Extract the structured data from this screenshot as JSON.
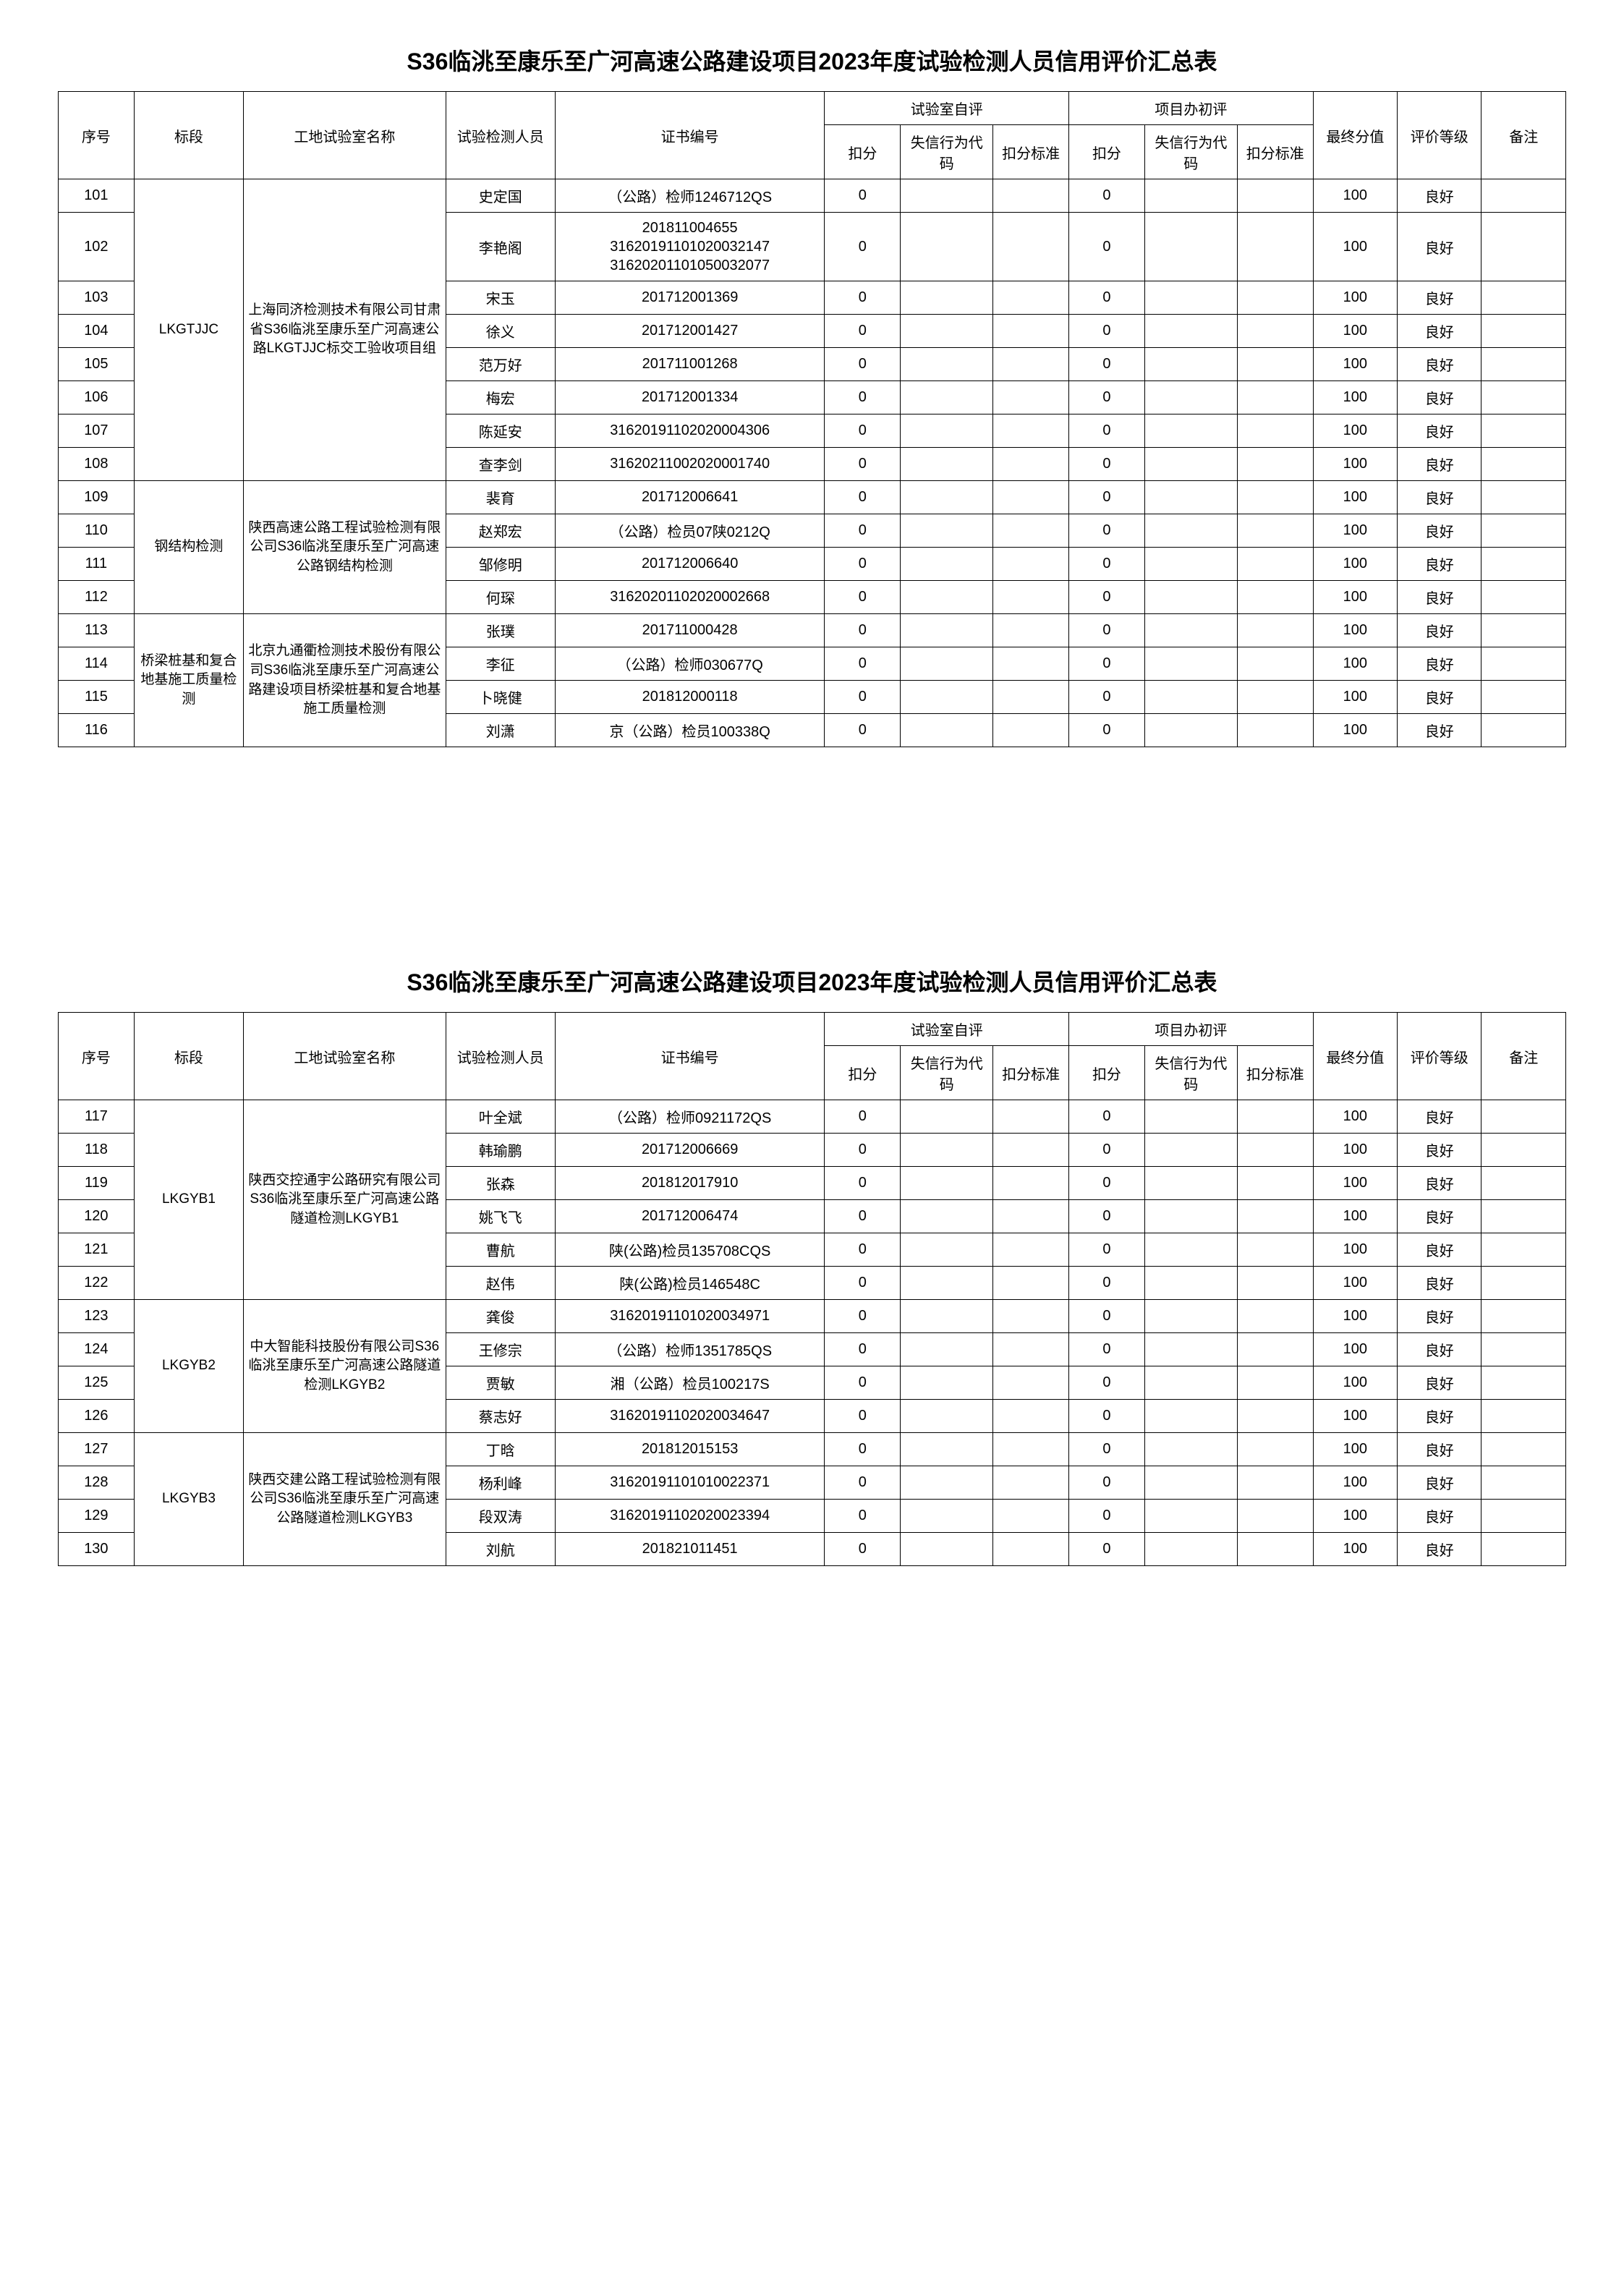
{
  "title": "S36临洮至康乐至广河高速公路建设项目2023年度试验检测人员信用评价汇总表",
  "headers": {
    "seq": "序号",
    "section": "标段",
    "lab": "工地试验室名称",
    "person": "试验检测人员",
    "cert": "证书编号",
    "labEval": "试验室自评",
    "projEval": "项目办初评",
    "deduct": "扣分",
    "code": "失信行为代码",
    "std": "扣分标准",
    "final": "最终分值",
    "grade": "评价等级",
    "remark": "备注"
  },
  "table1": {
    "groups": [
      {
        "section": "LKGTJJC",
        "lab": "上海同济检测技术有限公司甘肃省S36临洮至康乐至广河高速公路LKGTJJC标交工验收项目组",
        "rows": [
          {
            "seq": "101",
            "person": "史定国",
            "cert": "（公路）检师1246712QS",
            "d1": "0",
            "d2": "0",
            "final": "100",
            "grade": "良好"
          },
          {
            "seq": "102",
            "person": "李艳阁",
            "cert": "201811004655\n31620191101020032147\n31620201101050032077",
            "d1": "0",
            "d2": "0",
            "final": "100",
            "grade": "良好"
          },
          {
            "seq": "103",
            "person": "宋玉",
            "cert": "201712001369",
            "d1": "0",
            "d2": "0",
            "final": "100",
            "grade": "良好"
          },
          {
            "seq": "104",
            "person": "徐义",
            "cert": "201712001427",
            "d1": "0",
            "d2": "0",
            "final": "100",
            "grade": "良好"
          },
          {
            "seq": "105",
            "person": "范万好",
            "cert": "201711001268",
            "d1": "0",
            "d2": "0",
            "final": "100",
            "grade": "良好"
          },
          {
            "seq": "106",
            "person": "梅宏",
            "cert": "201712001334",
            "d1": "0",
            "d2": "0",
            "final": "100",
            "grade": "良好"
          },
          {
            "seq": "107",
            "person": "陈延安",
            "cert": "31620191102020004306",
            "d1": "0",
            "d2": "0",
            "final": "100",
            "grade": "良好"
          },
          {
            "seq": "108",
            "person": "查李剑",
            "cert": "31620211002020001740",
            "d1": "0",
            "d2": "0",
            "final": "100",
            "grade": "良好"
          }
        ]
      },
      {
        "section": "钢结构检测",
        "lab": "陕西高速公路工程试验检测有限公司S36临洮至康乐至广河高速公路钢结构检测",
        "rows": [
          {
            "seq": "109",
            "person": "裴育",
            "cert": "201712006641",
            "d1": "0",
            "d2": "0",
            "final": "100",
            "grade": "良好"
          },
          {
            "seq": "110",
            "person": "赵郑宏",
            "cert": "（公路）检员07陕0212Q",
            "d1": "0",
            "d2": "0",
            "final": "100",
            "grade": "良好"
          },
          {
            "seq": "111",
            "person": "邹修明",
            "cert": "201712006640",
            "d1": "0",
            "d2": "0",
            "final": "100",
            "grade": "良好"
          },
          {
            "seq": "112",
            "person": "何琛",
            "cert": "31620201102020002668",
            "d1": "0",
            "d2": "0",
            "final": "100",
            "grade": "良好"
          }
        ]
      },
      {
        "section": "桥梁桩基和复合地基施工质量检测",
        "lab": "北京九通衢检测技术股份有限公司S36临洮至康乐至广河高速公路建设项目桥梁桩基和复合地基施工质量检测",
        "rows": [
          {
            "seq": "113",
            "person": "张璞",
            "cert": "201711000428",
            "d1": "0",
            "d2": "0",
            "final": "100",
            "grade": "良好"
          },
          {
            "seq": "114",
            "person": "李征",
            "cert": "（公路）检师030677Q",
            "d1": "0",
            "d2": "0",
            "final": "100",
            "grade": "良好"
          },
          {
            "seq": "115",
            "person": "卜晓健",
            "cert": "201812000118",
            "d1": "0",
            "d2": "0",
            "final": "100",
            "grade": "良好"
          },
          {
            "seq": "116",
            "person": "刘潇",
            "cert": "京（公路）检员100338Q",
            "d1": "0",
            "d2": "0",
            "final": "100",
            "grade": "良好"
          }
        ]
      }
    ]
  },
  "table2": {
    "groups": [
      {
        "section": "LKGYB1",
        "lab": "陕西交控通宇公路研究有限公司S36临洮至康乐至广河高速公路隧道检测LKGYB1",
        "rows": [
          {
            "seq": "117",
            "person": "叶全斌",
            "cert": "（公路）检师0921172QS",
            "d1": "0",
            "d2": "0",
            "final": "100",
            "grade": "良好"
          },
          {
            "seq": "118",
            "person": "韩瑜鹏",
            "cert": "201712006669",
            "d1": "0",
            "d2": "0",
            "final": "100",
            "grade": "良好"
          },
          {
            "seq": "119",
            "person": "张森",
            "cert": "201812017910",
            "d1": "0",
            "d2": "0",
            "final": "100",
            "grade": "良好"
          },
          {
            "seq": "120",
            "person": "姚飞飞",
            "cert": "201712006474",
            "d1": "0",
            "d2": "0",
            "final": "100",
            "grade": "良好"
          },
          {
            "seq": "121",
            "person": "曹航",
            "cert": "陕(公路)检员135708CQS",
            "d1": "0",
            "d2": "0",
            "final": "100",
            "grade": "良好"
          },
          {
            "seq": "122",
            "person": "赵伟",
            "cert": "陕(公路)检员146548C",
            "d1": "0",
            "d2": "0",
            "final": "100",
            "grade": "良好"
          }
        ]
      },
      {
        "section": "LKGYB2",
        "lab": "中大智能科技股份有限公司S36临洮至康乐至广河高速公路隧道检测LKGYB2",
        "rows": [
          {
            "seq": "123",
            "person": "龚俊",
            "cert": "31620191101020034971",
            "d1": "0",
            "d2": "0",
            "final": "100",
            "grade": "良好"
          },
          {
            "seq": "124",
            "person": "王修宗",
            "cert": "（公路）检师1351785QS",
            "d1": "0",
            "d2": "0",
            "final": "100",
            "grade": "良好"
          },
          {
            "seq": "125",
            "person": "贾敏",
            "cert": "湘（公路）检员100217S",
            "d1": "0",
            "d2": "0",
            "final": "100",
            "grade": "良好"
          },
          {
            "seq": "126",
            "person": "蔡志好",
            "cert": "31620191102020034647",
            "d1": "0",
            "d2": "0",
            "final": "100",
            "grade": "良好"
          }
        ]
      },
      {
        "section": "LKGYB3",
        "lab": "陕西交建公路工程试验检测有限公司S36临洮至康乐至广河高速公路隧道检测LKGYB3",
        "rows": [
          {
            "seq": "127",
            "person": "丁晗",
            "cert": "201812015153",
            "d1": "0",
            "d2": "0",
            "final": "100",
            "grade": "良好"
          },
          {
            "seq": "128",
            "person": "杨利峰",
            "cert": "31620191101010022371",
            "d1": "0",
            "d2": "0",
            "final": "100",
            "grade": "良好"
          },
          {
            "seq": "129",
            "person": "段双涛",
            "cert": "31620191102020023394",
            "d1": "0",
            "d2": "0",
            "final": "100",
            "grade": "良好"
          },
          {
            "seq": "130",
            "person": "刘航",
            "cert": "201821011451",
            "d1": "0",
            "d2": "0",
            "final": "100",
            "grade": "良好"
          }
        ]
      }
    ]
  }
}
